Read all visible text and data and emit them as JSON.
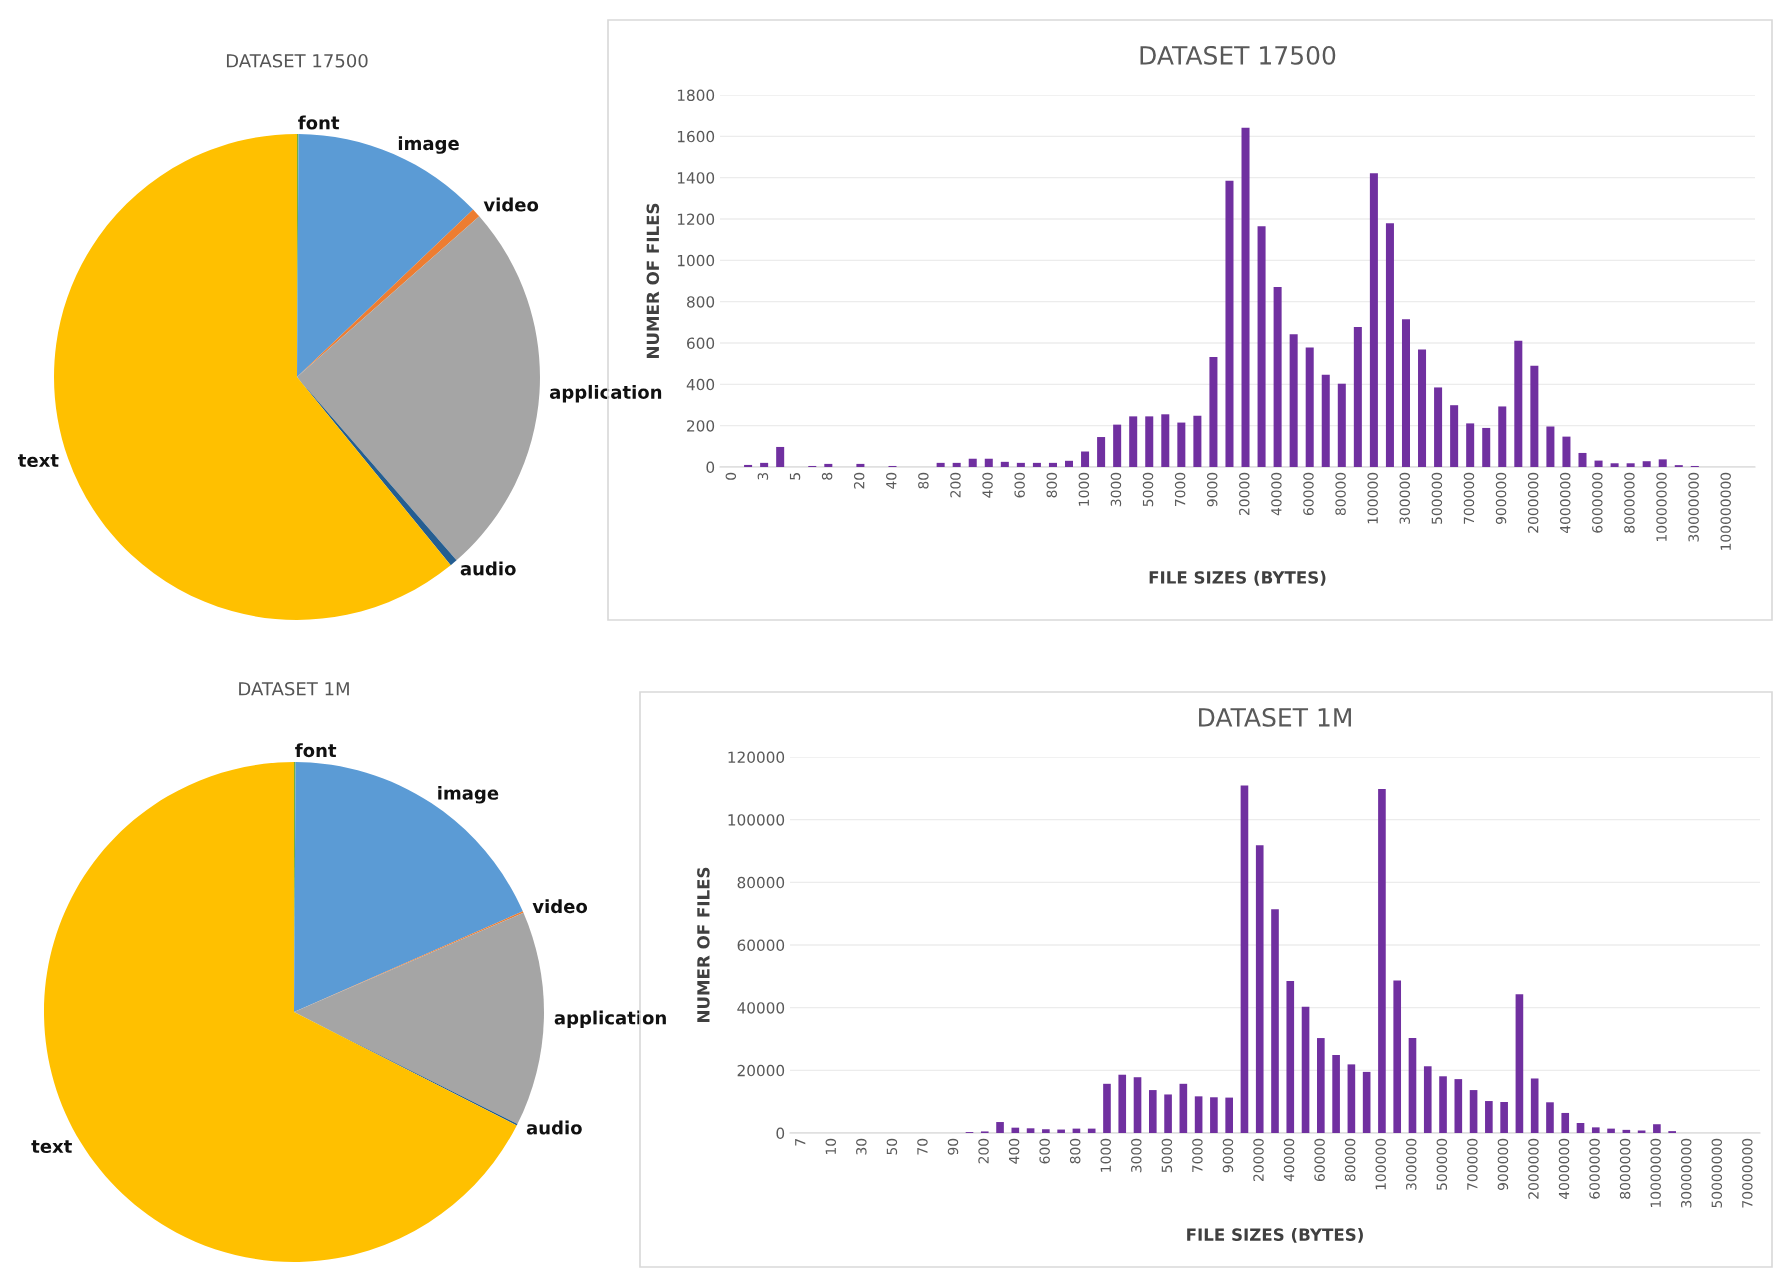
{
  "chart_data": [
    {
      "type": "pie",
      "title": "DATASET 17500",
      "categories": [
        "font",
        "image",
        "video",
        "application",
        "audio",
        "text"
      ],
      "values": [
        0.1,
        12.8,
        0.6,
        25.1,
        0.5,
        60.9
      ],
      "colors": [
        "#70ad47",
        "#5b9bd5",
        "#ed7d31",
        "#a5a5a5",
        "#255e91",
        "#ffc000"
      ]
    },
    {
      "type": "bar",
      "title": "DATASET 17500",
      "xlabel": "FILE SIZES (BYTES)",
      "ylabel": "NUMER OF FILES",
      "color": "#7030a0",
      "ylim": [
        0,
        1800
      ],
      "yticks": [
        0,
        200,
        400,
        600,
        800,
        1000,
        1200,
        1400,
        1600,
        1800
      ],
      "grid": "y",
      "categories": [
        "0",
        null,
        "3",
        null,
        "5",
        null,
        "8",
        null,
        "20",
        null,
        "40",
        null,
        "80",
        null,
        "200",
        null,
        "400",
        null,
        "600",
        null,
        "800",
        null,
        "1000",
        null,
        "3000",
        null,
        "5000",
        null,
        "7000",
        null,
        "9000",
        null,
        "20000",
        null,
        "40000",
        null,
        "60000",
        null,
        "80000",
        null,
        "100000",
        null,
        "300000",
        null,
        "500000",
        null,
        "700000",
        null,
        "900000",
        null,
        "2000000",
        null,
        "4000000",
        null,
        "6000000",
        null,
        "8000000",
        null,
        "10000000",
        null,
        "30000000",
        null,
        "100000000",
        null
      ],
      "values": [
        0,
        10,
        20,
        97,
        0,
        5,
        15,
        0,
        15,
        0,
        5,
        0,
        0,
        20,
        20,
        40,
        40,
        25,
        20,
        20,
        20,
        30,
        75,
        145,
        205,
        245,
        245,
        255,
        215,
        248,
        532,
        1385,
        1641,
        1165,
        871,
        642,
        578,
        446,
        403,
        677,
        1421,
        1179,
        715,
        569,
        385,
        299,
        211,
        189,
        293,
        611,
        490,
        196,
        147,
        68,
        31,
        18,
        18,
        28,
        37,
        9,
        5,
        0,
        0,
        0
      ]
    },
    {
      "type": "pie",
      "title": "DATASET 1M",
      "categories": [
        "font",
        "image",
        "video",
        "application",
        "audio",
        "text"
      ],
      "values": [
        0.1,
        18.3,
        0.1,
        13.9,
        0.1,
        67.5
      ],
      "colors": [
        "#70ad47",
        "#5b9bd5",
        "#ed7d31",
        "#a5a5a5",
        "#255e91",
        "#ffc000"
      ]
    },
    {
      "type": "bar",
      "title": "DATASET 1M",
      "xlabel": "FILE SIZES (BYTES)",
      "ylabel": "NUMER OF FILES",
      "color": "#7030a0",
      "ylim": [
        0,
        120000
      ],
      "yticks": [
        0,
        20000,
        40000,
        60000,
        80000,
        100000,
        120000
      ],
      "grid": "y",
      "categories": [
        "7",
        null,
        "10",
        null,
        "30",
        null,
        "50",
        null,
        "70",
        null,
        "90",
        null,
        "200",
        null,
        "400",
        null,
        "600",
        null,
        "800",
        null,
        "1000",
        null,
        "3000",
        null,
        "5000",
        null,
        "7000",
        null,
        "9000",
        null,
        "20000",
        null,
        "40000",
        null,
        "60000",
        null,
        "80000",
        null,
        "100000",
        null,
        "300000",
        null,
        "500000",
        null,
        "700000",
        null,
        "900000",
        null,
        "2000000",
        null,
        "4000000",
        null,
        "6000000",
        null,
        "8000000",
        null,
        "10000000",
        null,
        "30000000",
        null,
        "50000000",
        null,
        "70000000"
      ],
      "values": [
        0,
        0,
        0,
        0,
        0,
        0,
        0,
        0,
        0,
        0,
        0,
        300,
        500,
        3500,
        1700,
        1500,
        1200,
        1100,
        1400,
        1400,
        15700,
        18600,
        17800,
        13700,
        12300,
        15700,
        11700,
        11400,
        11300,
        110900,
        91800,
        71400,
        48500,
        40300,
        30300,
        24900,
        21900,
        19500,
        109800,
        48700,
        30300,
        21300,
        18100,
        17200,
        13700,
        10200,
        9900,
        44300,
        17400,
        9800,
        6400,
        3200,
        1800,
        1400,
        1000,
        800,
        2800,
        600,
        0,
        0,
        0,
        0,
        0
      ]
    }
  ]
}
